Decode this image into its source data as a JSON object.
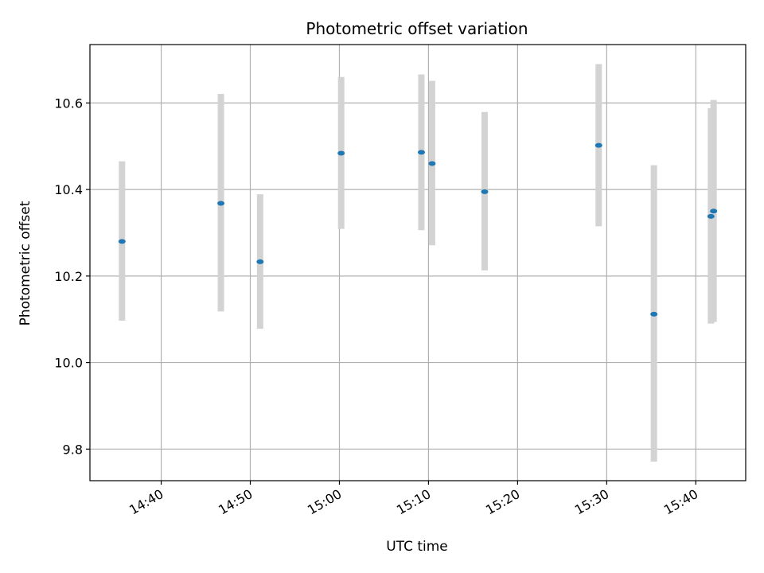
{
  "chart_data": {
    "type": "scatter",
    "title": "Photometric offset variation",
    "xlabel": "UTC time",
    "ylabel": "Photometric offset",
    "grid": true,
    "x_ticks": [
      "14:40",
      "14:50",
      "15:00",
      "15:10",
      "15:20",
      "15:30",
      "15:40"
    ],
    "x_tick_minutes": [
      880,
      890,
      900,
      910,
      920,
      930,
      940
    ],
    "y_ticks": [
      "9.8",
      "10.0",
      "10.2",
      "10.4",
      "10.6"
    ],
    "y_tick_values": [
      9.8,
      10.0,
      10.2,
      10.4,
      10.6
    ],
    "xlim_minutes": [
      872.0,
      945.6
    ],
    "ylim": [
      9.727,
      10.735
    ],
    "marker_color": "#1f77b4",
    "errorbar_color": "#d3d3d3",
    "points": [
      {
        "t": "14:35.6",
        "minute": 875.6,
        "y": 10.28,
        "low": 10.097,
        "high": 10.465
      },
      {
        "t": "14:46.7",
        "minute": 886.7,
        "y": 10.368,
        "low": 10.118,
        "high": 10.621
      },
      {
        "t": "14:51.1",
        "minute": 891.1,
        "y": 10.233,
        "low": 10.078,
        "high": 10.389
      },
      {
        "t": "15:00.2",
        "minute": 900.2,
        "y": 10.484,
        "low": 10.309,
        "high": 10.66
      },
      {
        "t": "15:09.2",
        "minute": 909.2,
        "y": 10.486,
        "low": 10.306,
        "high": 10.666
      },
      {
        "t": "15:10.4",
        "minute": 910.4,
        "y": 10.46,
        "low": 10.271,
        "high": 10.651
      },
      {
        "t": "15:16.3",
        "minute": 916.3,
        "y": 10.395,
        "low": 10.213,
        "high": 10.579
      },
      {
        "t": "15:29.1",
        "minute": 929.1,
        "y": 10.502,
        "low": 10.315,
        "high": 10.69
      },
      {
        "t": "15:35.3",
        "minute": 935.3,
        "y": 10.112,
        "low": 9.771,
        "high": 10.456
      },
      {
        "t": "15:41.7",
        "minute": 941.7,
        "y": 10.338,
        "low": 10.09,
        "high": 10.588
      },
      {
        "t": "15:42.0",
        "minute": 942.0,
        "y": 10.35,
        "low": 10.094,
        "high": 10.607
      }
    ]
  }
}
